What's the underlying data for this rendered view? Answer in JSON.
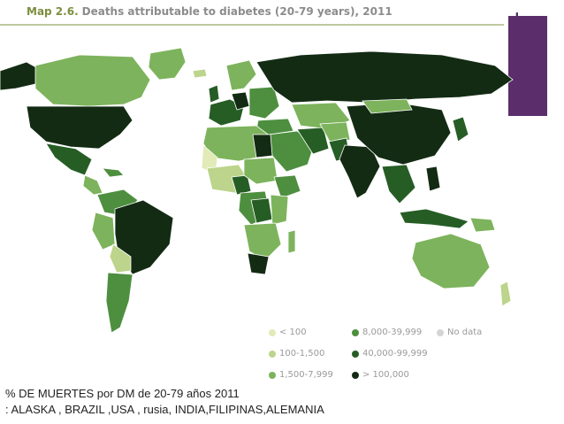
{
  "title": {
    "map_number": "Map 2.6.",
    "text": "Deaths attributable to diabetes (20-79 years), 2011"
  },
  "legend": {
    "items": [
      {
        "label": "< 100",
        "color": "#e2eab8"
      },
      {
        "label": "100-1,500",
        "color": "#bcd48b"
      },
      {
        "label": "1,500-7,999",
        "color": "#7db35c"
      },
      {
        "label": "8,000-39,999",
        "color": "#4d8f3f"
      },
      {
        "label": "40,000-99,999",
        "color": "#265d25"
      },
      {
        "label": "> 100,000",
        "color": "#132b13"
      },
      {
        "label": "No data",
        "color": "#d4d4d4"
      }
    ]
  },
  "caption": {
    "line1": "% DE MUERTES por DM de 20-79 años 2011",
    "line2": ": ALASKA , BRAZIL ,USA , rusia, INDIA,FILIPINAS,ALEMANIA"
  },
  "colors": {
    "accent_box": "#5b2d6b",
    "land_base": "#8cbd6a"
  }
}
